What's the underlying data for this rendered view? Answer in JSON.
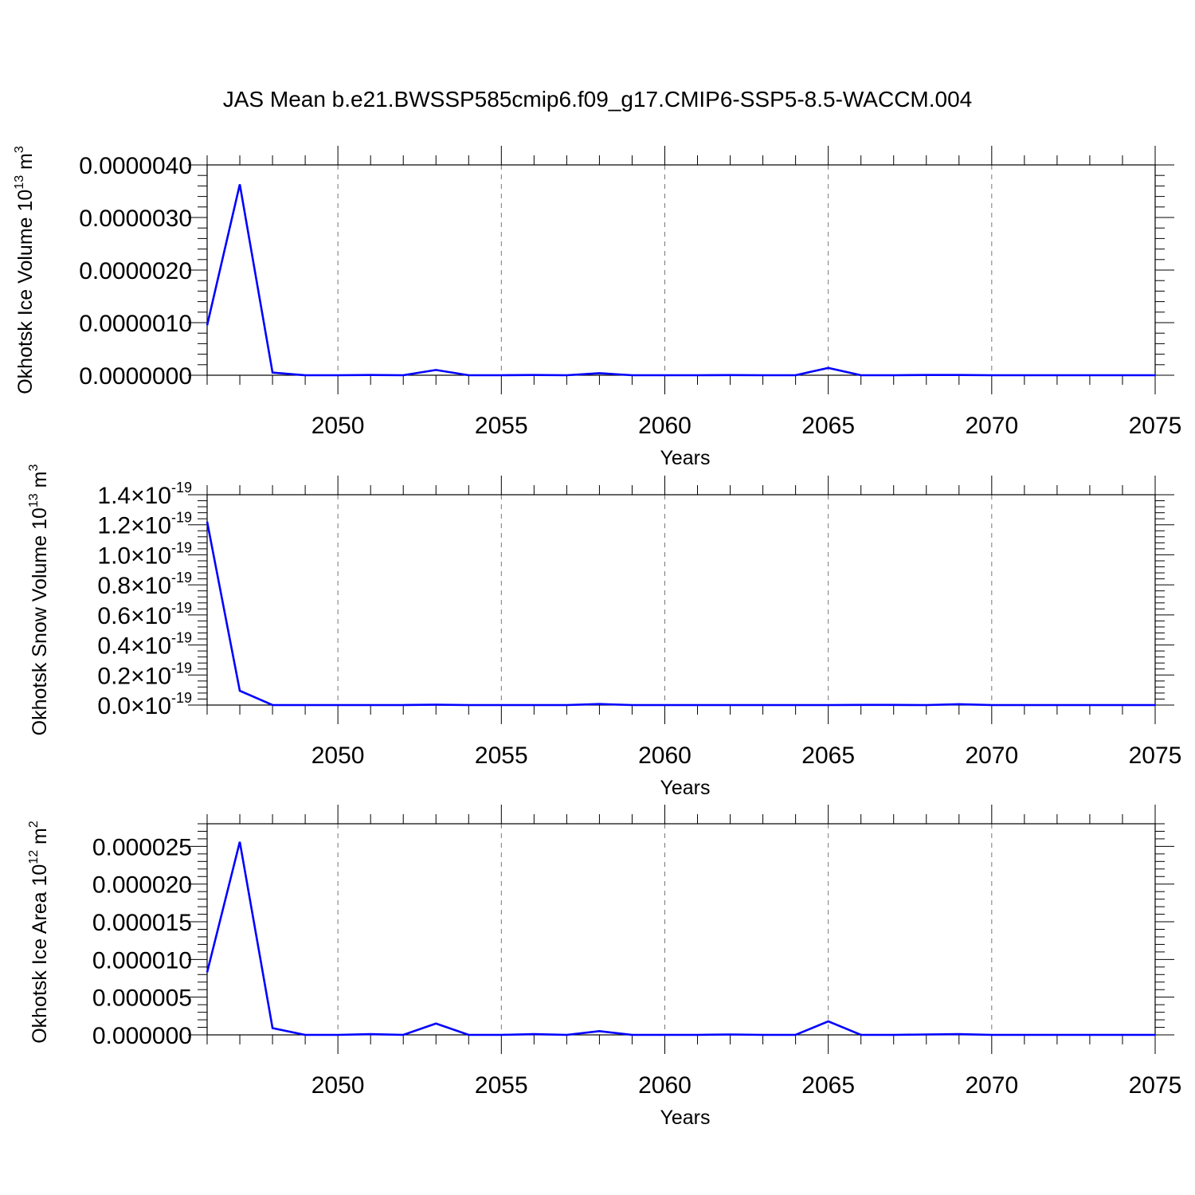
{
  "figure_title": "JAS Mean b.e21.BWSSP585cmip6.f09_g17.CMIP6-SSP5-8.5-WACCM.004",
  "colors": {
    "line": "#0000ff",
    "axis": "#000000",
    "grid": "#777777"
  },
  "chart_data": [
    {
      "type": "line",
      "title": "",
      "xlabel": "Years",
      "ylabel": "Okhotsk Ice Volume 10^13 m^3",
      "ylabel_parts": {
        "base": "Okhotsk Ice Volume 10",
        "sup1": "13",
        "mid": " m",
        "sup2": "3"
      },
      "xlim": [
        2046,
        2075
      ],
      "ylim": [
        0,
        4e-06
      ],
      "x_ticks": [
        2050,
        2055,
        2060,
        2065,
        2070,
        2075
      ],
      "y_ticks": [
        0,
        1e-06,
        2e-06,
        3e-06,
        4e-06
      ],
      "y_tick_labels": [
        "0.0000000",
        "0.0000010",
        "0.0000020",
        "0.0000030",
        "0.0000040"
      ],
      "grid": "vertical dashed",
      "x": [
        2046,
        2047,
        2048,
        2049,
        2050,
        2051,
        2052,
        2053,
        2054,
        2055,
        2056,
        2057,
        2058,
        2059,
        2060,
        2061,
        2062,
        2063,
        2064,
        2065,
        2066,
        2067,
        2068,
        2069,
        2070,
        2071,
        2072,
        2073,
        2074,
        2075
      ],
      "series": [
        {
          "values": [
            9.5e-07,
            3.63e-06,
            5e-08,
            0,
            0,
            5e-09,
            0,
            1e-07,
            0,
            0,
            5e-09,
            0,
            4e-08,
            0,
            0,
            0,
            3e-09,
            0,
            0,
            1.4e-07,
            0,
            0,
            5e-09,
            5e-09,
            0,
            0,
            0,
            0,
            0,
            0
          ]
        }
      ]
    },
    {
      "type": "line",
      "title": "",
      "xlabel": "Years",
      "ylabel": "Okhotsk Snow Volume 10^13 m^3",
      "ylabel_parts": {
        "base": "Okhotsk Snow Volume 10",
        "sup1": "13",
        "mid": " m",
        "sup2": "3"
      },
      "xlim": [
        2046,
        2075
      ],
      "ylim": [
        0,
        1.4e-19
      ],
      "x_ticks": [
        2050,
        2055,
        2060,
        2065,
        2070,
        2075
      ],
      "y_ticks": [
        0,
        2e-20,
        4e-20,
        6e-20,
        8e-20,
        1e-19,
        1.2e-19,
        1.4e-19
      ],
      "y_tick_labels": [
        "0.0",
        "0.2",
        "0.4",
        "0.6",
        "0.8",
        "1.0",
        "1.2",
        "1.4"
      ],
      "y_tick_suffix": "×10",
      "y_tick_exponent": "-19",
      "grid": "vertical dashed",
      "x": [
        2046,
        2047,
        2048,
        2049,
        2050,
        2051,
        2052,
        2053,
        2054,
        2055,
        2056,
        2057,
        2058,
        2059,
        2060,
        2061,
        2062,
        2063,
        2064,
        2065,
        2066,
        2067,
        2068,
        2069,
        2070,
        2071,
        2072,
        2073,
        2074,
        2075
      ],
      "series": [
        {
          "values": [
            1.22e-19,
            9.5e-21,
            0,
            0,
            0,
            0,
            0,
            2e-22,
            0,
            0,
            0,
            0,
            7e-22,
            0,
            0,
            0,
            0,
            0,
            0,
            0,
            1e-22,
            1e-22,
            0,
            6e-22,
            0,
            0,
            0,
            0,
            0,
            0
          ]
        }
      ]
    },
    {
      "type": "line",
      "title": "",
      "xlabel": "Years",
      "ylabel": "Okhotsk Ice Area 10^12 m^2",
      "ylabel_parts": {
        "base": "Okhotsk Ice Area 10",
        "sup1": "12",
        "mid": " m",
        "sup2": "2"
      },
      "xlim": [
        2046,
        2075
      ],
      "ylim": [
        0,
        2.8e-05
      ],
      "x_ticks": [
        2050,
        2055,
        2060,
        2065,
        2070,
        2075
      ],
      "y_ticks": [
        0,
        5e-06,
        1e-05,
        1.5e-05,
        2e-05,
        2.5e-05
      ],
      "y_tick_labels": [
        "0.000000",
        "0.000005",
        "0.000010",
        "0.000015",
        "0.000020",
        "0.000025"
      ],
      "grid": "vertical dashed",
      "x": [
        2046,
        2047,
        2048,
        2049,
        2050,
        2051,
        2052,
        2053,
        2054,
        2055,
        2056,
        2057,
        2058,
        2059,
        2060,
        2061,
        2062,
        2063,
        2064,
        2065,
        2066,
        2067,
        2068,
        2069,
        2070,
        2071,
        2072,
        2073,
        2074,
        2075
      ],
      "series": [
        {
          "values": [
            8.3e-06,
            2.56e-05,
            9e-07,
            0,
            0,
            1e-07,
            0,
            1.5e-06,
            0,
            0,
            1e-07,
            0,
            5e-07,
            0,
            0,
            0,
            5e-08,
            0,
            0,
            1.8e-06,
            0,
            0,
            5e-08,
            1e-07,
            0,
            0,
            0,
            0,
            0,
            0
          ]
        }
      ]
    }
  ]
}
